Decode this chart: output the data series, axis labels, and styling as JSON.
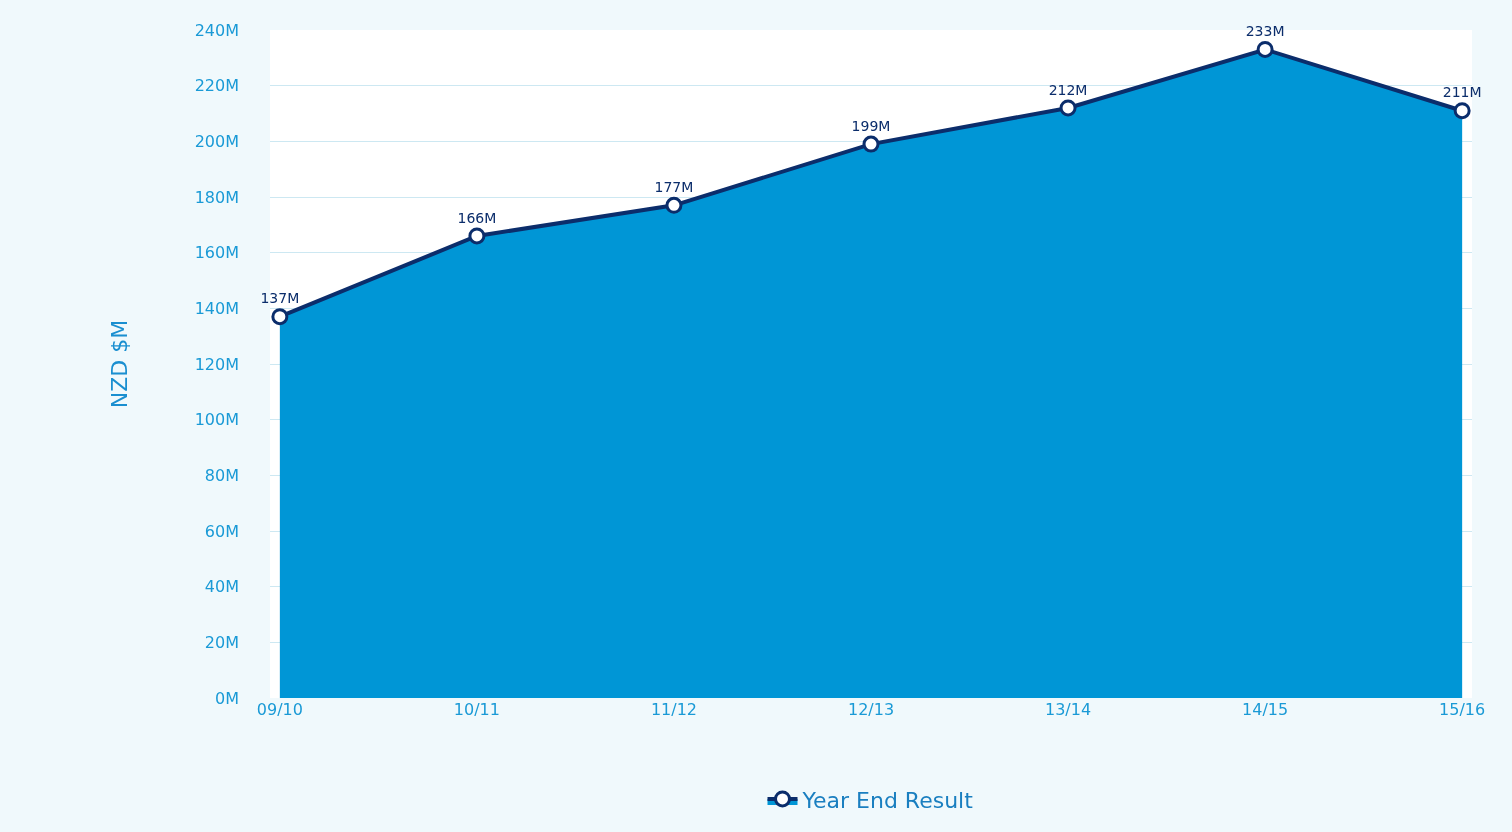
{
  "chart_data": {
    "type": "area",
    "ylabel": "NZD $M",
    "categories": [
      "09/10",
      "10/11",
      "11/12",
      "12/13",
      "13/14",
      "14/15",
      "15/16"
    ],
    "series": [
      {
        "name": "Year End Result",
        "color": "#0096d6",
        "values": [
          137,
          166,
          177,
          199,
          212,
          233,
          211
        ],
        "value_labels": [
          "137M",
          "166M",
          "177M",
          "199M",
          "212M",
          "233M",
          "211M"
        ]
      }
    ],
    "ylim": [
      0,
      240
    ],
    "yticks": [
      {
        "value": 0,
        "label": "0M"
      },
      {
        "value": 20,
        "label": "20M"
      },
      {
        "value": 40,
        "label": "40M"
      },
      {
        "value": 60,
        "label": "60M"
      },
      {
        "value": 80,
        "label": "80M"
      },
      {
        "value": 100,
        "label": "100M"
      },
      {
        "value": 120,
        "label": "120M"
      },
      {
        "value": 140,
        "label": "140M"
      },
      {
        "value": 160,
        "label": "160M"
      },
      {
        "value": 180,
        "label": "180M"
      },
      {
        "value": 200,
        "label": "200M"
      },
      {
        "value": 220,
        "label": "220M"
      },
      {
        "value": 240,
        "label": "240M"
      }
    ],
    "grid": "y",
    "legend": "bottom",
    "marker": "circle"
  }
}
